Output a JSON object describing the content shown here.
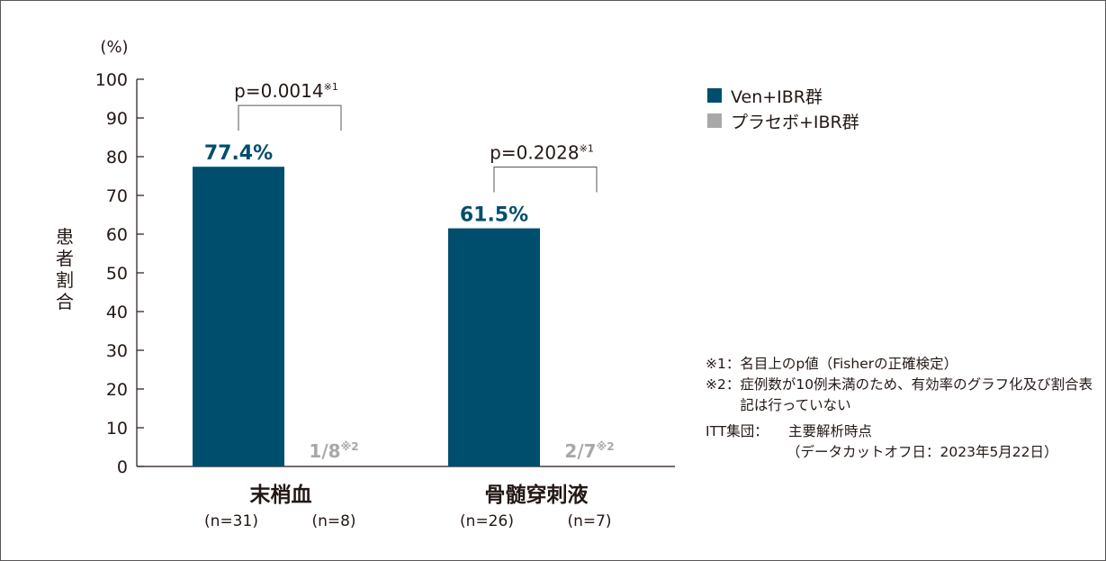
{
  "colors": {
    "ven": "#004e6e",
    "placebo": "#a8a8a8",
    "axis": "#231815"
  },
  "legend": {
    "items": [
      {
        "label": "Ven+IBR群",
        "color": "#004e6e"
      },
      {
        "label": "プラセボ+IBR群",
        "color": "#a8a8a8"
      }
    ]
  },
  "notes": {
    "note1_mark": "※1：",
    "note1_text": "名目上のp値（Fisherの正確検定）",
    "note2_mark": "※2：",
    "note2_text": "症例数が10例未満のため、有効率のグラフ化及び割合表記は行っていない",
    "itt_label": "ITT集団：",
    "itt_value": "主要解析時点",
    "itt_cut": "（データカットオフ日：2023年5月22日）"
  },
  "chart_data": {
    "type": "bar",
    "ylabel": "患者割合",
    "yunit": "(%)",
    "ylim": [
      0,
      100
    ],
    "yticks": [
      0,
      10,
      20,
      30,
      40,
      50,
      60,
      70,
      80,
      90,
      100
    ],
    "categories": [
      {
        "name": "末梢血",
        "bars": [
          {
            "series": "Ven+IBR群",
            "value": 77.4,
            "label": "77.4%",
            "n": "(n=31)"
          },
          {
            "series": "プラセボ+IBR群",
            "value": null,
            "label": "1/8",
            "label_note": "※2",
            "n": "(n=8)"
          }
        ],
        "pvalue": "p=0.0014",
        "pvalue_note": "※1"
      },
      {
        "name": "骨髄穿刺液",
        "bars": [
          {
            "series": "Ven+IBR群",
            "value": 61.5,
            "label": "61.5%",
            "n": "(n=26)"
          },
          {
            "series": "プラセボ+IBR群",
            "value": null,
            "label": "2/7",
            "label_note": "※2",
            "n": "(n=7)"
          }
        ],
        "pvalue": "p=0.2028",
        "pvalue_note": "※1"
      }
    ]
  }
}
